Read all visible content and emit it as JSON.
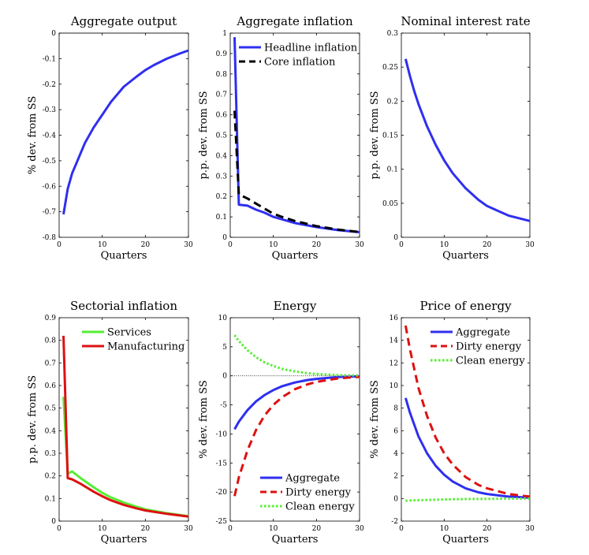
{
  "chart_data": [
    {
      "type": "line",
      "title": "Aggregate output",
      "xlabel": "Quarters",
      "ylabel": "% dev. from SS",
      "xlim": [
        0,
        30
      ],
      "ylim": [
        -0.8,
        0
      ],
      "xticks": [
        0,
        10,
        20,
        30
      ],
      "xtick_labels": [
        "0",
        "10",
        "20",
        "30"
      ],
      "yticks": [
        0,
        -0.1,
        -0.2,
        -0.3,
        -0.4,
        -0.5,
        -0.6,
        -0.7,
        -0.8
      ],
      "ytick_labels": [
        "0",
        "-0.1",
        "-0.2",
        "-0.3",
        "-0.4",
        "-0.5",
        "-0.6",
        "-0.7",
        "-0.8"
      ],
      "zero_line": true,
      "legend": null,
      "series": [
        {
          "color": "#2f2ff0",
          "dash": "solid",
          "x": [
            1,
            2,
            3,
            4,
            5,
            6,
            8,
            10,
            12,
            15,
            18,
            20,
            22,
            25,
            28,
            30
          ],
          "y": [
            -0.71,
            -0.61,
            -0.55,
            -0.51,
            -0.47,
            -0.43,
            -0.37,
            -0.32,
            -0.27,
            -0.21,
            -0.17,
            -0.145,
            -0.125,
            -0.1,
            -0.08,
            -0.068
          ]
        }
      ]
    },
    {
      "type": "line",
      "title": "Aggregate inflation",
      "xlabel": "Quarters",
      "ylabel": "p.p. dev. from SS",
      "xlim": [
        0,
        30
      ],
      "ylim": [
        0,
        1
      ],
      "xticks": [
        0,
        10,
        20,
        30
      ],
      "xtick_labels": [
        "0",
        "10",
        "20",
        "30"
      ],
      "yticks": [
        0,
        0.1,
        0.2,
        0.3,
        0.4,
        0.5,
        0.6,
        0.7,
        0.8,
        0.9,
        1
      ],
      "ytick_labels": [
        "0",
        "0.1",
        "0.2",
        "0.3",
        "0.4",
        "0.5",
        "0.6",
        "0.7",
        "0.8",
        "0.9",
        "1"
      ],
      "zero_line": false,
      "legend": "top-right",
      "series": [
        {
          "name": "Headline inflation",
          "color": "#2f2ff0",
          "dash": "solid",
          "x": [
            1,
            2,
            4,
            6,
            8,
            10,
            12,
            15,
            18,
            20,
            25,
            30
          ],
          "y": [
            0.98,
            0.16,
            0.155,
            0.135,
            0.12,
            0.1,
            0.088,
            0.07,
            0.058,
            0.05,
            0.035,
            0.025
          ]
        },
        {
          "name": "Core inflation",
          "color": "#000000",
          "dash": "dashed",
          "x": [
            1,
            2,
            4,
            6,
            8,
            10,
            12,
            15,
            18,
            20,
            25,
            30
          ],
          "y": [
            0.62,
            0.21,
            0.19,
            0.165,
            0.14,
            0.115,
            0.1,
            0.08,
            0.065,
            0.055,
            0.038,
            0.026
          ]
        }
      ]
    },
    {
      "type": "line",
      "title": "Nominal interest rate",
      "xlabel": "Quarters",
      "ylabel": "p.p. dev. from SS",
      "xlim": [
        0,
        30
      ],
      "ylim": [
        0,
        0.3
      ],
      "xticks": [
        0,
        10,
        20,
        30
      ],
      "xtick_labels": [
        "0",
        "10",
        "20",
        "30"
      ],
      "yticks": [
        0,
        0.05,
        0.1,
        0.15,
        0.2,
        0.25,
        0.3
      ],
      "ytick_labels": [
        "0",
        "0.05",
        "0.1",
        "0.15",
        "0.2",
        "0.25",
        "0.3"
      ],
      "zero_line": false,
      "legend": null,
      "series": [
        {
          "color": "#2f2ff0",
          "dash": "solid",
          "x": [
            1,
            2,
            3,
            4,
            6,
            8,
            10,
            12,
            15,
            18,
            20,
            25,
            30
          ],
          "y": [
            0.262,
            0.237,
            0.215,
            0.196,
            0.163,
            0.136,
            0.113,
            0.094,
            0.072,
            0.055,
            0.046,
            0.032,
            0.024
          ]
        }
      ]
    },
    {
      "type": "line",
      "title": "Sectorial inflation",
      "xlabel": "Quarters",
      "ylabel": "p.p. dev. from SS",
      "xlim": [
        0,
        30
      ],
      "ylim": [
        0,
        0.9
      ],
      "xticks": [
        0,
        10,
        20,
        30
      ],
      "xtick_labels": [
        "0",
        "10",
        "20",
        "30"
      ],
      "yticks": [
        0,
        0.1,
        0.2,
        0.3,
        0.4,
        0.5,
        0.6,
        0.7,
        0.8,
        0.9
      ],
      "ytick_labels": [
        "0",
        "0.1",
        "0.2",
        "0.3",
        "0.4",
        "0.5",
        "0.6",
        "0.7",
        "0.8",
        "0.9"
      ],
      "zero_line": false,
      "legend": "top-right",
      "series": [
        {
          "name": "Services",
          "color": "#55ee33",
          "dash": "solid",
          "x": [
            1,
            2,
            3,
            5,
            8,
            10,
            12,
            15,
            18,
            20,
            25,
            30
          ],
          "y": [
            0.55,
            0.21,
            0.22,
            0.19,
            0.15,
            0.125,
            0.105,
            0.082,
            0.063,
            0.052,
            0.035,
            0.022
          ]
        },
        {
          "name": "Manufacturing",
          "color": "#dd1111",
          "dash": "solid",
          "x": [
            1,
            2,
            3,
            5,
            8,
            10,
            12,
            15,
            18,
            20,
            25,
            30
          ],
          "y": [
            0.82,
            0.19,
            0.185,
            0.165,
            0.13,
            0.11,
            0.092,
            0.072,
            0.056,
            0.047,
            0.032,
            0.02
          ]
        }
      ]
    },
    {
      "type": "line",
      "title": "Energy",
      "xlabel": "Quarters",
      "ylabel": "% dev. from SS",
      "xlim": [
        0,
        30
      ],
      "ylim": [
        -25,
        10
      ],
      "xticks": [
        0,
        10,
        20,
        30
      ],
      "xtick_labels": [
        "0",
        "10",
        "20",
        "30"
      ],
      "yticks": [
        10,
        5,
        0,
        -5,
        -10,
        -15,
        -20,
        -25
      ],
      "ytick_labels": [
        "10",
        "5",
        "0",
        "-5",
        "-10",
        "-15",
        "-20",
        "-25"
      ],
      "zero_line": true,
      "legend": "bottom-right",
      "series": [
        {
          "name": "Aggregate",
          "color": "#2f2ff0",
          "dash": "solid",
          "x": [
            1,
            2,
            4,
            6,
            8,
            10,
            12,
            15,
            18,
            20,
            25,
            30
          ],
          "y": [
            -9.2,
            -7.9,
            -5.9,
            -4.4,
            -3.3,
            -2.45,
            -1.8,
            -1.15,
            -0.72,
            -0.53,
            -0.22,
            -0.09
          ]
        },
        {
          "name": "Dirty energy",
          "color": "#dd1111",
          "dash": "dashed",
          "x": [
            1,
            2,
            4,
            6,
            8,
            10,
            12,
            15,
            18,
            20,
            25,
            30
          ],
          "y": [
            -20.7,
            -17.5,
            -12.8,
            -9.3,
            -6.8,
            -5.0,
            -3.7,
            -2.3,
            -1.45,
            -1.05,
            -0.45,
            -0.18
          ]
        },
        {
          "name": "Clean energy",
          "color": "#55ee33",
          "dash": "dotted",
          "x": [
            1,
            2,
            4,
            6,
            8,
            10,
            12,
            15,
            18,
            20,
            25,
            30
          ],
          "y": [
            7.0,
            6.0,
            4.4,
            3.2,
            2.3,
            1.7,
            1.2,
            0.75,
            0.45,
            0.32,
            0.13,
            0.05
          ]
        }
      ]
    },
    {
      "type": "line",
      "title": "Price of energy",
      "xlabel": "Quarters",
      "ylabel": "% dev. from SS",
      "xlim": [
        0,
        30
      ],
      "ylim": [
        -2,
        16
      ],
      "xticks": [
        0,
        10,
        20,
        30
      ],
      "xtick_labels": [
        "0",
        "10",
        "20",
        "30"
      ],
      "yticks": [
        16,
        14,
        12,
        10,
        8,
        6,
        4,
        2,
        0,
        -2
      ],
      "ytick_labels": [
        "16",
        "14",
        "12",
        "10",
        "8",
        "6",
        "4",
        "2",
        "0",
        "-2"
      ],
      "zero_line": false,
      "legend": "top-right",
      "series": [
        {
          "name": "Aggregate",
          "color": "#2f2ff0",
          "dash": "solid",
          "x": [
            1,
            2,
            4,
            6,
            8,
            10,
            12,
            15,
            18,
            20,
            25,
            30
          ],
          "y": [
            8.9,
            7.6,
            5.5,
            4.0,
            2.9,
            2.1,
            1.5,
            0.9,
            0.55,
            0.4,
            0.17,
            0.07
          ]
        },
        {
          "name": "Dirty energy",
          "color": "#dd1111",
          "dash": "dashed",
          "x": [
            1,
            2,
            4,
            6,
            8,
            10,
            12,
            15,
            18,
            20,
            25,
            30
          ],
          "y": [
            15.3,
            13.2,
            9.8,
            7.3,
            5.4,
            4.0,
            3.0,
            1.9,
            1.2,
            0.9,
            0.4,
            0.17
          ]
        },
        {
          "name": "Clean energy",
          "color": "#55ee33",
          "dash": "dotted",
          "x": [
            1,
            2,
            4,
            6,
            8,
            10,
            12,
            15,
            18,
            20,
            25,
            30
          ],
          "y": [
            -0.2,
            -0.18,
            -0.15,
            -0.13,
            -0.11,
            -0.09,
            -0.07,
            -0.05,
            -0.04,
            -0.03,
            -0.015,
            -0.006
          ]
        }
      ]
    }
  ]
}
